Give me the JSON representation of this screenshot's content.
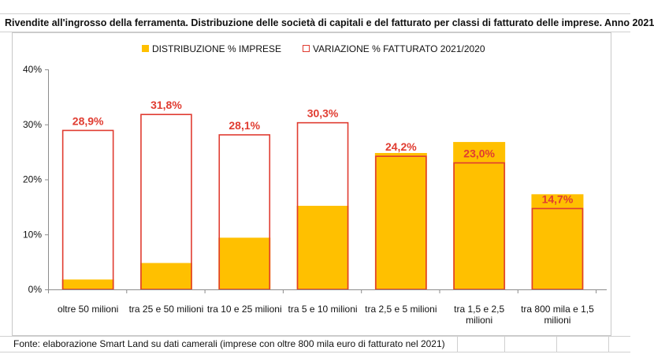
{
  "chart_data": {
    "type": "bar",
    "title": "Rivendite all'ingrosso della ferramenta. Distribuzione delle società di capitali e del fatturato per classi di fatturato delle imprese. Anno 2021",
    "categories": [
      [
        "oltre 50 milioni"
      ],
      [
        "tra 25 e 50 milioni"
      ],
      [
        "tra 10 e 25 milioni"
      ],
      [
        "tra 5 e 10 milioni"
      ],
      [
        "tra 2,5 e 5 milioni"
      ],
      [
        "tra 1,5 e 2,5",
        "milioni"
      ],
      [
        "tra 800 mila e 1,5",
        "milioni"
      ]
    ],
    "series": [
      {
        "name": "DISTRIBUZIONE % IMPRESE",
        "style": "filled",
        "color": "#FFC000",
        "values": [
          1.8,
          4.8,
          9.4,
          15.2,
          24.8,
          26.8,
          17.3
        ]
      },
      {
        "name": "VARIAZIONE % FATTURATO 2021/2020",
        "style": "outline",
        "color": "#E03C31",
        "values": [
          28.9,
          31.8,
          28.1,
          30.3,
          24.2,
          23.0,
          14.7
        ],
        "data_labels": [
          "28,9%",
          "31,8%",
          "28,1%",
          "30,3%",
          "24,2%",
          "23,0%",
          "14,7%"
        ]
      }
    ],
    "yticks": [
      "0%",
      "10%",
      "20%",
      "30%",
      "40%"
    ],
    "ylim": [
      0,
      40
    ],
    "grid": false,
    "legend_position": "top-center",
    "footer": "Fonte: elaborazione Smart Land su dati camerali (imprese con oltre 800 mila euro di fatturato nel 2021)"
  }
}
